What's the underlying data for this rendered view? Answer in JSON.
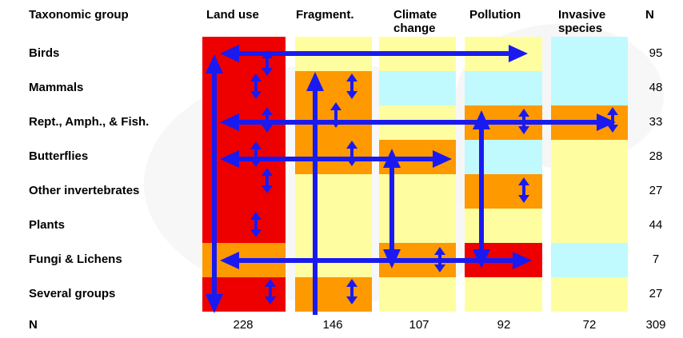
{
  "header": {
    "group": "Taxonomic group",
    "threats": [
      "Land use",
      "Fragment.",
      "Climate\nchange",
      "Pollution",
      "Invasive\nspecies"
    ],
    "n": "N"
  },
  "rows": [
    {
      "label": "Birds",
      "n": "95"
    },
    {
      "label": "Mammals",
      "n": "48"
    },
    {
      "label": "Rept., Amph., & Fish.",
      "n": "33"
    },
    {
      "label": "Butterflies",
      "n": "28"
    },
    {
      "label": "Other invertebrates",
      "n": "27"
    },
    {
      "label": "Plants",
      "n": "44"
    },
    {
      "label": "Fungi & Lichens",
      "n": "7"
    },
    {
      "label": "Several groups",
      "n": "27"
    }
  ],
  "totals": {
    "label": "N",
    "values": [
      "228",
      "146",
      "107",
      "92",
      "72"
    ],
    "total": "309"
  },
  "colors": {
    "red": "#ee0000",
    "orange": "#fe9900",
    "yellow": "#fefea0",
    "cyan": "#c0fafe",
    "arrow": "#1a1af0"
  }
}
